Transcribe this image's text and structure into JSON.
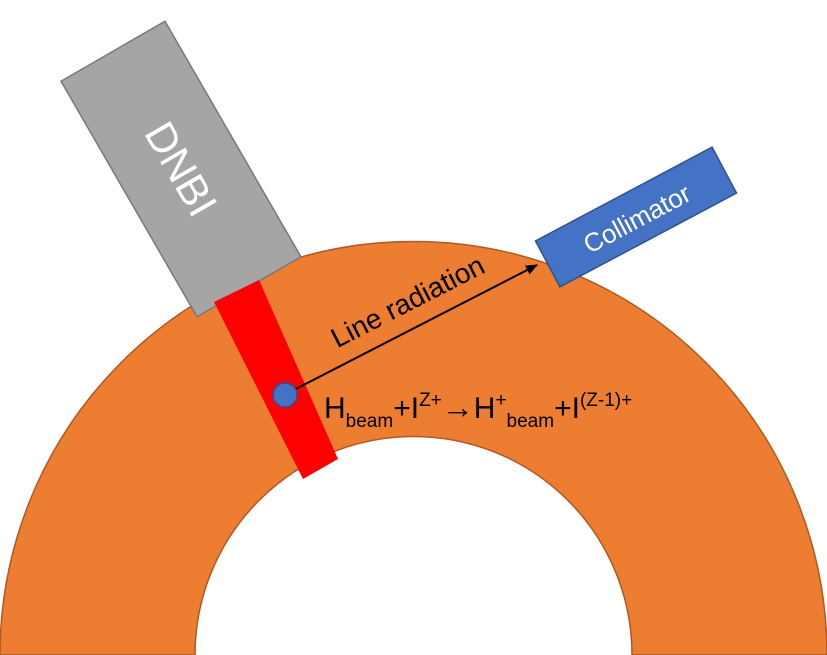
{
  "labels": {
    "dnbi": "DNBI",
    "collimator": "Collimator",
    "line_radiation": "Line radiation"
  },
  "equation": {
    "h": "H",
    "sub_beam_1": "beam",
    "plus_1": "+I",
    "sup_charge": "Z+",
    "arrow": "→",
    "h2": "H",
    "sup_plus": "+",
    "sub_beam_2": "beam",
    "plus_2": "+I",
    "sup_charge_2": "(Z-1)+"
  },
  "colors": {
    "plasma_fill": "#ED7D31",
    "plasma_stroke": "#AE5A21",
    "beam_path": "#FF0000",
    "dnbi_fill": "#A5A5A5",
    "dnbi_stroke": "#787878",
    "collimator_fill": "#4472C4",
    "collimator_stroke": "#2F528F",
    "emission_point": "#4472C4",
    "arrow": "#000000",
    "text": "#000000",
    "label_on_shape": "#ffffff"
  }
}
